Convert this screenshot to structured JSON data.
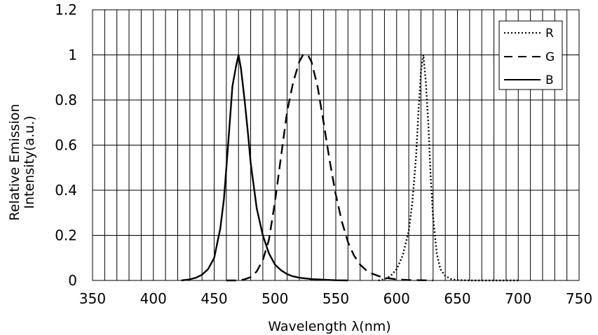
{
  "chart_data": {
    "type": "line",
    "title": "",
    "xlabel": "Wavelength λ(nm)",
    "ylabel_line1": "Relative Emission",
    "ylabel_line2": "Intensity(a.u.)",
    "xlim": [
      350,
      750
    ],
    "ylim": [
      0,
      1.2
    ],
    "x_ticks": [
      350,
      400,
      450,
      500,
      550,
      600,
      650,
      700,
      750
    ],
    "x_tick_labels": [
      "350",
      "400",
      "450",
      "500",
      "550",
      "600",
      "650",
      "700",
      "750"
    ],
    "y_ticks": [
      0,
      0.2,
      0.4,
      0.6,
      0.8,
      1,
      1.2
    ],
    "y_tick_labels": [
      "0",
      "0.2",
      "0.4",
      "0.6",
      "0.8",
      "1",
      "1.2"
    ],
    "minor_x_grid_step": 10,
    "grid": true,
    "legend_position": "top-right",
    "series": [
      {
        "name": "R",
        "line_style": "dotted",
        "color": "#000000",
        "x": [
          585,
          590,
          595,
          600,
          605,
          610,
          613,
          616,
          618,
          620,
          622,
          624,
          626,
          628,
          630,
          633,
          636,
          640,
          645,
          650,
          655,
          660,
          670,
          680,
          690,
          700
        ],
        "y": [
          0.0,
          0.005,
          0.02,
          0.05,
          0.11,
          0.22,
          0.35,
          0.55,
          0.75,
          0.93,
          1.0,
          0.88,
          0.7,
          0.46,
          0.28,
          0.12,
          0.05,
          0.02,
          0.006,
          0.002,
          0.001,
          0.0,
          0.0,
          0.0,
          0.0,
          0.0
        ]
      },
      {
        "name": "G",
        "line_style": "dashed",
        "color": "#000000",
        "x": [
          460,
          470,
          475,
          480,
          485,
          490,
          495,
          500,
          505,
          510,
          515,
          520,
          523,
          527,
          530,
          535,
          540,
          545,
          550,
          555,
          560,
          565,
          570,
          575,
          580,
          585,
          590,
          600,
          610,
          620,
          630
        ],
        "y": [
          0.0,
          0.0,
          0.005,
          0.015,
          0.04,
          0.09,
          0.18,
          0.35,
          0.55,
          0.75,
          0.88,
          0.97,
          1.0,
          1.0,
          0.97,
          0.86,
          0.7,
          0.53,
          0.38,
          0.26,
          0.17,
          0.11,
          0.07,
          0.045,
          0.03,
          0.02,
          0.012,
          0.005,
          0.002,
          0.001,
          0.0
        ]
      },
      {
        "name": "B",
        "line_style": "solid",
        "color": "#000000",
        "x": [
          423,
          430,
          435,
          440,
          445,
          450,
          455,
          458,
          460,
          462,
          465,
          468,
          470,
          472,
          475,
          478,
          480,
          485,
          490,
          495,
          500,
          505,
          510,
          515,
          520,
          530,
          540,
          550,
          560
        ],
        "y": [
          0.0,
          0.005,
          0.012,
          0.025,
          0.05,
          0.1,
          0.23,
          0.36,
          0.5,
          0.64,
          0.86,
          0.95,
          1.0,
          0.94,
          0.8,
          0.64,
          0.52,
          0.32,
          0.2,
          0.12,
          0.07,
          0.045,
          0.028,
          0.018,
          0.012,
          0.006,
          0.003,
          0.001,
          0.0
        ]
      }
    ]
  }
}
